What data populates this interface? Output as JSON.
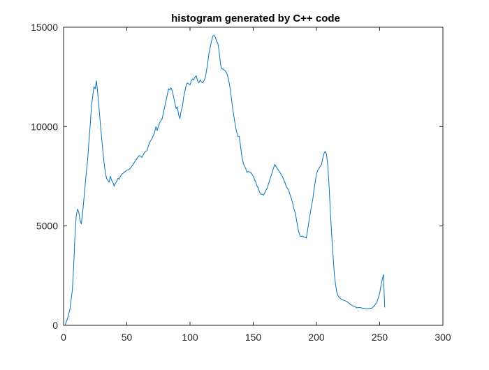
{
  "chart_data": {
    "type": "line",
    "title": "histogram generated by C++ code",
    "xlabel": "",
    "ylabel": "",
    "xlim": [
      0,
      300
    ],
    "ylim": [
      0,
      15000
    ],
    "xticks": [
      0,
      50,
      100,
      150,
      200,
      250,
      300
    ],
    "yticks": [
      0,
      5000,
      10000,
      15000
    ],
    "xtick_labels": [
      "0",
      "50",
      "100",
      "150",
      "200",
      "250",
      "300"
    ],
    "ytick_labels": [
      "0",
      "5000",
      "10000",
      "15000"
    ],
    "grid": false,
    "legend": "none",
    "series": [
      {
        "color": "#0072BD",
        "points": [
          [
            1,
            0
          ],
          [
            3,
            300
          ],
          [
            5,
            800
          ],
          [
            7,
            1800
          ],
          [
            8,
            3000
          ],
          [
            9,
            4500
          ],
          [
            10,
            5500
          ],
          [
            11,
            5850
          ],
          [
            12,
            5700
          ],
          [
            13,
            5300
          ],
          [
            14,
            5100
          ],
          [
            15,
            5600
          ],
          [
            16,
            6300
          ],
          [
            17,
            7000
          ],
          [
            18,
            7700
          ],
          [
            19,
            8300
          ],
          [
            20,
            9200
          ],
          [
            21,
            10000
          ],
          [
            22,
            11000
          ],
          [
            23,
            11500
          ],
          [
            24,
            12000
          ],
          [
            25,
            11900
          ],
          [
            26,
            12300
          ],
          [
            27,
            11700
          ],
          [
            28,
            11000
          ],
          [
            29,
            10200
          ],
          [
            30,
            9500
          ],
          [
            31,
            8800
          ],
          [
            32,
            8200
          ],
          [
            33,
            7700
          ],
          [
            34,
            7400
          ],
          [
            35,
            7300
          ],
          [
            36,
            7200
          ],
          [
            37,
            7500
          ],
          [
            38,
            7300
          ],
          [
            39,
            7200
          ],
          [
            40,
            7000
          ],
          [
            41,
            7150
          ],
          [
            42,
            7250
          ],
          [
            43,
            7400
          ],
          [
            44,
            7350
          ],
          [
            45,
            7500
          ],
          [
            46,
            7600
          ],
          [
            48,
            7700
          ],
          [
            50,
            7800
          ],
          [
            52,
            7850
          ],
          [
            54,
            8000
          ],
          [
            56,
            8200
          ],
          [
            58,
            8400
          ],
          [
            60,
            8550
          ],
          [
            62,
            8450
          ],
          [
            64,
            8700
          ],
          [
            66,
            8800
          ],
          [
            68,
            9200
          ],
          [
            70,
            9400
          ],
          [
            72,
            9700
          ],
          [
            73,
            10000
          ],
          [
            74,
            9800
          ],
          [
            75,
            10000
          ],
          [
            76,
            10200
          ],
          [
            77,
            10300
          ],
          [
            78,
            10400
          ],
          [
            79,
            10700
          ],
          [
            80,
            11000
          ],
          [
            81,
            11300
          ],
          [
            82,
            11600
          ],
          [
            83,
            11900
          ],
          [
            84,
            11850
          ],
          [
            85,
            11950
          ],
          [
            86,
            11800
          ],
          [
            87,
            11500
          ],
          [
            88,
            11200
          ],
          [
            89,
            10900
          ],
          [
            90,
            11000
          ],
          [
            91,
            10600
          ],
          [
            92,
            10400
          ],
          [
            93,
            10800
          ],
          [
            94,
            11000
          ],
          [
            95,
            11500
          ],
          [
            96,
            11800
          ],
          [
            97,
            12100
          ],
          [
            98,
            12200
          ],
          [
            99,
            12150
          ],
          [
            100,
            12100
          ],
          [
            101,
            12300
          ],
          [
            102,
            12400
          ],
          [
            103,
            12350
          ],
          [
            104,
            12500
          ],
          [
            105,
            12550
          ],
          [
            106,
            12300
          ],
          [
            107,
            12200
          ],
          [
            108,
            12350
          ],
          [
            109,
            12250
          ],
          [
            110,
            12200
          ],
          [
            111,
            12300
          ],
          [
            112,
            12450
          ],
          [
            113,
            12800
          ],
          [
            114,
            13200
          ],
          [
            115,
            13700
          ],
          [
            116,
            14000
          ],
          [
            117,
            14300
          ],
          [
            118,
            14550
          ],
          [
            119,
            14600
          ],
          [
            120,
            14500
          ],
          [
            121,
            14300
          ],
          [
            122,
            14200
          ],
          [
            123,
            13800
          ],
          [
            124,
            13200
          ],
          [
            125,
            12900
          ],
          [
            126,
            12900
          ],
          [
            127,
            12850
          ],
          [
            128,
            12800
          ],
          [
            129,
            12700
          ],
          [
            130,
            12500
          ],
          [
            131,
            12200
          ],
          [
            132,
            11800
          ],
          [
            133,
            11300
          ],
          [
            134,
            10800
          ],
          [
            135,
            10400
          ],
          [
            136,
            10000
          ],
          [
            137,
            9700
          ],
          [
            138,
            9500
          ],
          [
            139,
            9500
          ],
          [
            140,
            9000
          ],
          [
            141,
            8500
          ],
          [
            142,
            8200
          ],
          [
            143,
            8000
          ],
          [
            144,
            7900
          ],
          [
            145,
            7700
          ],
          [
            146,
            7750
          ],
          [
            147,
            7700
          ],
          [
            148,
            7700
          ],
          [
            149,
            7600
          ],
          [
            150,
            7500
          ],
          [
            151,
            7350
          ],
          [
            152,
            7200
          ],
          [
            153,
            7000
          ],
          [
            154,
            6900
          ],
          [
            155,
            6700
          ],
          [
            156,
            6600
          ],
          [
            157,
            6600
          ],
          [
            158,
            6550
          ],
          [
            159,
            6650
          ],
          [
            160,
            6800
          ],
          [
            161,
            6900
          ],
          [
            162,
            7100
          ],
          [
            163,
            7300
          ],
          [
            164,
            7500
          ],
          [
            165,
            7700
          ],
          [
            166,
            7900
          ],
          [
            167,
            8100
          ],
          [
            168,
            8000
          ],
          [
            169,
            7900
          ],
          [
            170,
            7800
          ],
          [
            171,
            7700
          ],
          [
            172,
            7600
          ],
          [
            173,
            7500
          ],
          [
            174,
            7350
          ],
          [
            175,
            7200
          ],
          [
            176,
            7000
          ],
          [
            177,
            6900
          ],
          [
            178,
            6800
          ],
          [
            179,
            6600
          ],
          [
            180,
            6400
          ],
          [
            181,
            6200
          ],
          [
            182,
            5900
          ],
          [
            183,
            5700
          ],
          [
            184,
            5400
          ],
          [
            185,
            5000
          ],
          [
            186,
            4700
          ],
          [
            187,
            4500
          ],
          [
            188,
            4480
          ],
          [
            189,
            4500
          ],
          [
            190,
            4450
          ],
          [
            191,
            4420
          ],
          [
            192,
            4400
          ],
          [
            193,
            4800
          ],
          [
            194,
            5200
          ],
          [
            195,
            5600
          ],
          [
            196,
            6000
          ],
          [
            197,
            6300
          ],
          [
            198,
            6800
          ],
          [
            199,
            7200
          ],
          [
            200,
            7600
          ],
          [
            201,
            7800
          ],
          [
            202,
            7900
          ],
          [
            203,
            8000
          ],
          [
            204,
            8100
          ],
          [
            205,
            8400
          ],
          [
            206,
            8650
          ],
          [
            207,
            8750
          ],
          [
            208,
            8600
          ],
          [
            209,
            8000
          ],
          [
            210,
            7000
          ],
          [
            211,
            5700
          ],
          [
            212,
            4600
          ],
          [
            213,
            3600
          ],
          [
            214,
            2700
          ],
          [
            215,
            2100
          ],
          [
            216,
            1700
          ],
          [
            217,
            1500
          ],
          [
            218,
            1400
          ],
          [
            219,
            1350
          ],
          [
            220,
            1300
          ],
          [
            222,
            1250
          ],
          [
            224,
            1200
          ],
          [
            226,
            1100
          ],
          [
            228,
            1000
          ],
          [
            230,
            950
          ],
          [
            232,
            880
          ],
          [
            234,
            900
          ],
          [
            236,
            870
          ],
          [
            238,
            850
          ],
          [
            240,
            830
          ],
          [
            242,
            850
          ],
          [
            244,
            870
          ],
          [
            246,
            1000
          ],
          [
            248,
            1200
          ],
          [
            250,
            1600
          ],
          [
            251,
            2000
          ],
          [
            252,
            2300
          ],
          [
            253,
            2550
          ],
          [
            254,
            900
          ]
        ]
      }
    ]
  }
}
